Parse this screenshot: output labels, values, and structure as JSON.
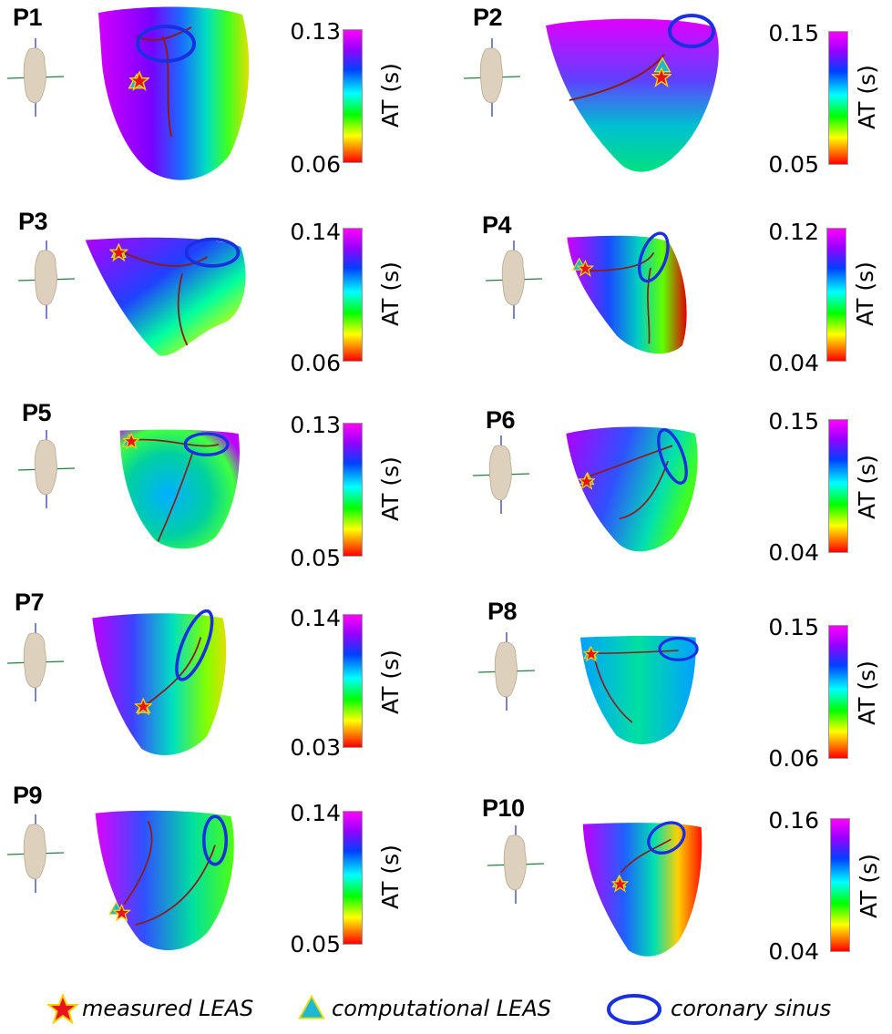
{
  "panels": [
    {
      "id": "P1",
      "max": "0.13",
      "min": "0.06"
    },
    {
      "id": "P2",
      "max": "0.15",
      "min": "0.05"
    },
    {
      "id": "P3",
      "max": "0.14",
      "min": "0.06"
    },
    {
      "id": "P4",
      "max": "0.12",
      "min": "0.04"
    },
    {
      "id": "P5",
      "max": "0.13",
      "min": "0.05"
    },
    {
      "id": "P6",
      "max": "0.15",
      "min": "0.04"
    },
    {
      "id": "P7",
      "max": "0.14",
      "min": "0.03"
    },
    {
      "id": "P8",
      "max": "0.15",
      "min": "0.06"
    },
    {
      "id": "P9",
      "max": "0.14",
      "min": "0.05"
    },
    {
      "id": "P10",
      "max": "0.16",
      "min": "0.04"
    }
  ],
  "colorbar_label": "AT (s)",
  "legend": {
    "measured": "measured LEAS",
    "computational": "computational LEAS",
    "sinus": "coronary sinus"
  },
  "colors": {
    "star_fill": "#e8141c",
    "star_stroke": "#f5d000",
    "triangle_fill": "#1fb7d6",
    "triangle_stroke": "#e8e000",
    "sinus": "#1a2fe0",
    "vessel": "#8b1a1a"
  }
}
